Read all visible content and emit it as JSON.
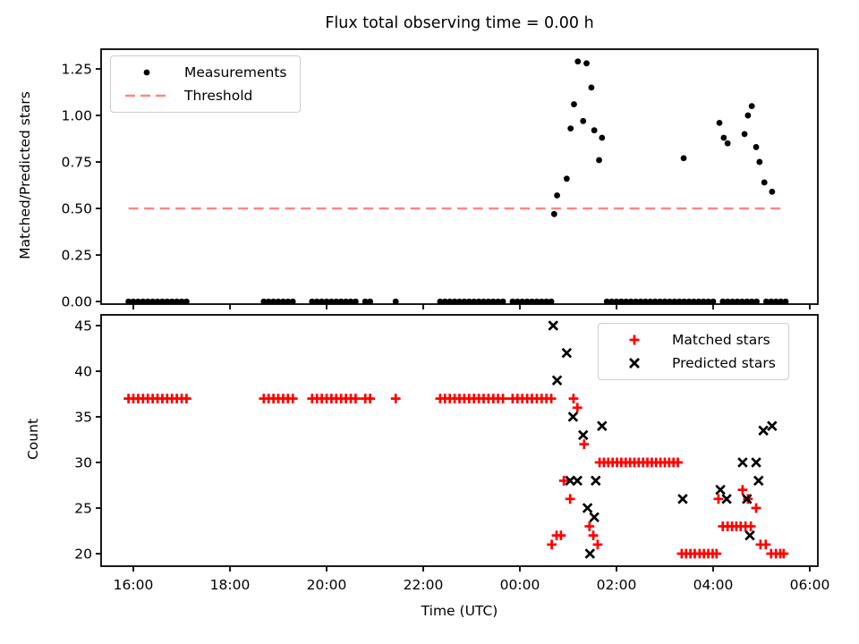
{
  "figure_title": "Flux total observing time = 0.00 h",
  "colors": {
    "measurement": "#000000",
    "matched": "#ff0000",
    "predicted": "#000000",
    "threshold": "#ff8585",
    "spine": "#000000",
    "legend_border": "#cccccc"
  },
  "chart_data": [
    {
      "type": "scatter",
      "title": "Flux total observing time = 0.00 h",
      "xlabel": "",
      "ylabel": "Matched/Predicted stars",
      "grid": false,
      "xlim": [
        15.333,
        30.167
      ],
      "ylim": [
        -0.014,
        1.356
      ],
      "yticks": {
        "values": [
          0,
          0.25,
          0.5,
          0.75,
          1.0,
          1.25
        ],
        "labels": [
          "0.00",
          "0.25",
          "0.50",
          "0.75",
          "1.00",
          "1.25"
        ]
      },
      "xticks": {
        "values": [
          16,
          18,
          20,
          22,
          24,
          26,
          28,
          30
        ],
        "labels": []
      },
      "legend": {
        "position": "upper left",
        "entries": [
          {
            "label": "Measurements",
            "marker": "dot",
            "color": "#000000"
          },
          {
            "label": "Threshold",
            "marker": "dashed-line",
            "color": "#ff8585"
          }
        ]
      },
      "threshold": {
        "y": 0.5,
        "x_start": 15.9,
        "x_end": 29.45,
        "color": "#ff8585",
        "style": "dashed"
      },
      "series": [
        {
          "name": "Measurements",
          "marker": "dot",
          "color": "#000000",
          "points": [
            [
              15.9,
              0
            ],
            [
              16.0,
              0
            ],
            [
              16.1,
              0
            ],
            [
              16.2,
              0
            ],
            [
              16.3,
              0
            ],
            [
              16.4,
              0
            ],
            [
              16.5,
              0
            ],
            [
              16.6,
              0
            ],
            [
              16.7,
              0
            ],
            [
              16.8,
              0
            ],
            [
              16.9,
              0
            ],
            [
              17.0,
              0
            ],
            [
              17.1,
              0
            ],
            [
              18.7,
              0
            ],
            [
              18.8,
              0
            ],
            [
              18.9,
              0
            ],
            [
              19.0,
              0
            ],
            [
              19.1,
              0
            ],
            [
              19.2,
              0
            ],
            [
              19.3,
              0
            ],
            [
              19.7,
              0
            ],
            [
              19.8,
              0
            ],
            [
              19.9,
              0
            ],
            [
              20.0,
              0
            ],
            [
              20.1,
              0
            ],
            [
              20.2,
              0
            ],
            [
              20.3,
              0
            ],
            [
              20.4,
              0
            ],
            [
              20.5,
              0
            ],
            [
              20.6,
              0
            ],
            [
              20.8,
              0
            ],
            [
              20.9,
              0
            ],
            [
              21.43,
              0
            ],
            [
              22.35,
              0
            ],
            [
              22.45,
              0
            ],
            [
              22.55,
              0
            ],
            [
              22.65,
              0
            ],
            [
              22.75,
              0
            ],
            [
              22.85,
              0
            ],
            [
              22.95,
              0
            ],
            [
              23.05,
              0
            ],
            [
              23.15,
              0
            ],
            [
              23.25,
              0
            ],
            [
              23.35,
              0
            ],
            [
              23.45,
              0
            ],
            [
              23.55,
              0
            ],
            [
              23.65,
              0
            ],
            [
              23.85,
              0
            ],
            [
              23.95,
              0
            ],
            [
              24.05,
              0
            ],
            [
              24.15,
              0
            ],
            [
              24.25,
              0
            ],
            [
              24.35,
              0
            ],
            [
              24.45,
              0
            ],
            [
              24.55,
              0
            ],
            [
              24.65,
              0
            ],
            [
              25.8,
              0
            ],
            [
              25.9,
              0
            ],
            [
              26.0,
              0
            ],
            [
              26.1,
              0
            ],
            [
              26.2,
              0
            ],
            [
              26.3,
              0
            ],
            [
              26.4,
              0
            ],
            [
              26.5,
              0
            ],
            [
              26.6,
              0
            ],
            [
              26.7,
              0
            ],
            [
              26.8,
              0
            ],
            [
              26.9,
              0
            ],
            [
              27.0,
              0
            ],
            [
              27.1,
              0
            ],
            [
              27.2,
              0
            ],
            [
              27.3,
              0
            ],
            [
              27.4,
              0
            ],
            [
              27.5,
              0
            ],
            [
              27.6,
              0
            ],
            [
              27.7,
              0
            ],
            [
              27.8,
              0
            ],
            [
              27.9,
              0
            ],
            [
              28.0,
              0
            ],
            [
              28.2,
              0
            ],
            [
              28.3,
              0
            ],
            [
              28.4,
              0
            ],
            [
              28.5,
              0
            ],
            [
              28.6,
              0
            ],
            [
              28.7,
              0
            ],
            [
              28.8,
              0
            ],
            [
              28.9,
              0
            ],
            [
              29.1,
              0
            ],
            [
              29.2,
              0
            ],
            [
              29.3,
              0
            ],
            [
              29.4,
              0
            ],
            [
              29.5,
              0
            ],
            [
              24.71,
              0.47
            ],
            [
              24.77,
              0.57
            ],
            [
              24.97,
              0.66
            ],
            [
              25.05,
              0.93
            ],
            [
              25.12,
              1.06
            ],
            [
              25.2,
              1.29
            ],
            [
              25.31,
              0.97
            ],
            [
              25.38,
              1.28
            ],
            [
              25.48,
              1.15
            ],
            [
              25.54,
              0.92
            ],
            [
              25.64,
              0.76
            ],
            [
              25.7,
              0.88
            ],
            [
              27.39,
              0.77
            ],
            [
              28.13,
              0.96
            ],
            [
              28.22,
              0.88
            ],
            [
              28.3,
              0.85
            ],
            [
              28.65,
              0.9
            ],
            [
              28.72,
              1.0
            ],
            [
              28.8,
              1.05
            ],
            [
              28.89,
              0.83
            ],
            [
              28.96,
              0.75
            ],
            [
              29.06,
              0.64
            ],
            [
              29.22,
              0.59
            ]
          ]
        }
      ]
    },
    {
      "type": "scatter",
      "title": "",
      "xlabel": "Time (UTC)",
      "ylabel": "Count",
      "grid": false,
      "xlim": [
        15.333,
        30.167
      ],
      "ylim": [
        18.63,
        46.18
      ],
      "yticks": {
        "values": [
          20,
          25,
          30,
          35,
          40,
          45
        ],
        "labels": [
          "20",
          "25",
          "30",
          "35",
          "40",
          "45"
        ]
      },
      "xticks": {
        "values": [
          16,
          18,
          20,
          22,
          24,
          26,
          28,
          30
        ],
        "labels": [
          "16:00",
          "18:00",
          "20:00",
          "22:00",
          "00:00",
          "02:00",
          "04:00",
          "06:00"
        ]
      },
      "legend": {
        "position": "upper right",
        "entries": [
          {
            "label": "Matched stars",
            "marker": "plus",
            "color": "#ff0000"
          },
          {
            "label": "Predicted stars",
            "marker": "x",
            "color": "#000000"
          }
        ]
      },
      "series": [
        {
          "name": "Matched stars",
          "marker": "plus",
          "color": "#ff0000",
          "points": [
            [
              15.9,
              37
            ],
            [
              16.0,
              37
            ],
            [
              16.1,
              37
            ],
            [
              16.2,
              37
            ],
            [
              16.3,
              37
            ],
            [
              16.4,
              37
            ],
            [
              16.5,
              37
            ],
            [
              16.6,
              37
            ],
            [
              16.7,
              37
            ],
            [
              16.8,
              37
            ],
            [
              16.9,
              37
            ],
            [
              17.0,
              37
            ],
            [
              17.1,
              37
            ],
            [
              18.7,
              37
            ],
            [
              18.8,
              37
            ],
            [
              18.9,
              37
            ],
            [
              19.0,
              37
            ],
            [
              19.1,
              37
            ],
            [
              19.2,
              37
            ],
            [
              19.3,
              37
            ],
            [
              19.7,
              37
            ],
            [
              19.8,
              37
            ],
            [
              19.9,
              37
            ],
            [
              20.0,
              37
            ],
            [
              20.1,
              37
            ],
            [
              20.2,
              37
            ],
            [
              20.3,
              37
            ],
            [
              20.4,
              37
            ],
            [
              20.5,
              37
            ],
            [
              20.6,
              37
            ],
            [
              20.8,
              37
            ],
            [
              20.9,
              37
            ],
            [
              21.43,
              37
            ],
            [
              22.35,
              37
            ],
            [
              22.45,
              37
            ],
            [
              22.55,
              37
            ],
            [
              22.65,
              37
            ],
            [
              22.75,
              37
            ],
            [
              22.85,
              37
            ],
            [
              22.95,
              37
            ],
            [
              23.05,
              37
            ],
            [
              23.15,
              37
            ],
            [
              23.25,
              37
            ],
            [
              23.35,
              37
            ],
            [
              23.45,
              37
            ],
            [
              23.55,
              37
            ],
            [
              23.65,
              37
            ],
            [
              23.85,
              37
            ],
            [
              23.95,
              37
            ],
            [
              24.05,
              37
            ],
            [
              24.15,
              37
            ],
            [
              24.25,
              37
            ],
            [
              24.35,
              37
            ],
            [
              24.45,
              37
            ],
            [
              24.55,
              37
            ],
            [
              24.65,
              37
            ],
            [
              24.66,
              21
            ],
            [
              24.76,
              22
            ],
            [
              24.85,
              22
            ],
            [
              24.91,
              28
            ],
            [
              25.04,
              26
            ],
            [
              25.11,
              37
            ],
            [
              25.19,
              36
            ],
            [
              25.33,
              32
            ],
            [
              25.44,
              23
            ],
            [
              25.52,
              22
            ],
            [
              25.61,
              21
            ],
            [
              25.65,
              30
            ],
            [
              25.74,
              30
            ],
            [
              25.83,
              30
            ],
            [
              25.92,
              30
            ],
            [
              26.01,
              30
            ],
            [
              26.1,
              30
            ],
            [
              26.19,
              30
            ],
            [
              26.28,
              30
            ],
            [
              26.37,
              30
            ],
            [
              26.46,
              30
            ],
            [
              26.55,
              30
            ],
            [
              26.64,
              30
            ],
            [
              26.73,
              30
            ],
            [
              26.82,
              30
            ],
            [
              26.91,
              30
            ],
            [
              27.0,
              30
            ],
            [
              27.09,
              30
            ],
            [
              27.18,
              30
            ],
            [
              27.27,
              30
            ],
            [
              27.35,
              20
            ],
            [
              27.44,
              20
            ],
            [
              27.53,
              20
            ],
            [
              27.62,
              20
            ],
            [
              27.72,
              20
            ],
            [
              27.81,
              20
            ],
            [
              27.9,
              20
            ],
            [
              27.99,
              20
            ],
            [
              28.07,
              20
            ],
            [
              28.11,
              26
            ],
            [
              28.61,
              27
            ],
            [
              28.72,
              26
            ],
            [
              28.89,
              25
            ],
            [
              28.98,
              21
            ],
            [
              29.09,
              21
            ],
            [
              28.2,
              23
            ],
            [
              28.3,
              23
            ],
            [
              28.39,
              23
            ],
            [
              28.48,
              23
            ],
            [
              28.57,
              23
            ],
            [
              28.67,
              23
            ],
            [
              28.78,
              23
            ],
            [
              29.2,
              20
            ],
            [
              29.3,
              20
            ],
            [
              29.39,
              20
            ],
            [
              29.46,
              20
            ]
          ]
        },
        {
          "name": "Predicted stars",
          "marker": "x",
          "color": "#000000",
          "points": [
            [
              24.69,
              45
            ],
            [
              24.77,
              39
            ],
            [
              24.97,
              42
            ],
            [
              25.04,
              28
            ],
            [
              25.1,
              35
            ],
            [
              25.19,
              28
            ],
            [
              25.31,
              33
            ],
            [
              25.4,
              25
            ],
            [
              25.45,
              20
            ],
            [
              25.54,
              24
            ],
            [
              25.57,
              28
            ],
            [
              25.7,
              34
            ],
            [
              27.37,
              26
            ],
            [
              28.15,
              27
            ],
            [
              28.28,
              26
            ],
            [
              28.61,
              30
            ],
            [
              28.7,
              26
            ],
            [
              28.76,
              22
            ],
            [
              28.89,
              30
            ],
            [
              28.94,
              28
            ],
            [
              29.04,
              33.5
            ],
            [
              29.22,
              34
            ]
          ]
        }
      ]
    }
  ]
}
